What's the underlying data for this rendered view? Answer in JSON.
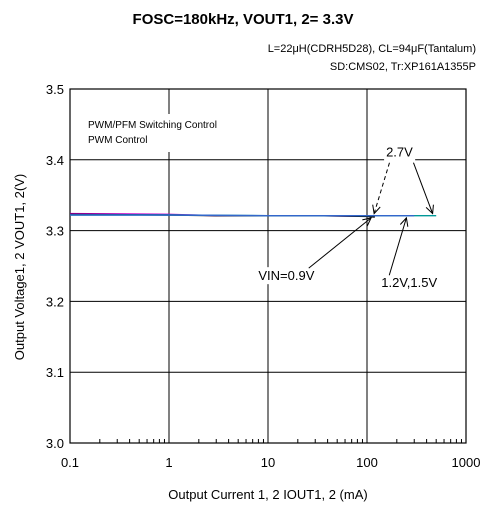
{
  "chart_data": {
    "type": "line",
    "title": "FOSC=180kHz, VOUT1, 2= 3.3V",
    "subtitle_line1": "L=22μH(CDRH5D28), CL=94μF(Tantalum)",
    "subtitle_line2": "SD:CMS02, Tr:XP161A1355P",
    "xlabel": "Output Current 1, 2 IOUT1, 2 (mA)",
    "ylabel": "Output Voltage1, 2 VOUT1, 2(V)",
    "x_scale": "log",
    "xlim": [
      0.1,
      1000
    ],
    "ylim": [
      3.0,
      3.5
    ],
    "x_ticks": [
      0.1,
      1,
      10,
      100,
      1000
    ],
    "x_tick_labels": [
      "0.1",
      "1",
      "10",
      "100",
      "1000"
    ],
    "y_ticks": [
      3.0,
      3.1,
      3.2,
      3.3,
      3.4,
      3.5
    ],
    "y_tick_labels": [
      "3.0",
      "3.1",
      "3.2",
      "3.3",
      "3.4",
      "3.5"
    ],
    "grid": true,
    "legend_text": [
      "PWM/PFM Switching Control",
      "PWM  Control"
    ],
    "legend_placement": "top-left",
    "series": [
      {
        "color": "#cc00cc",
        "x": [
          0.1,
          1,
          3,
          10,
          30,
          120
        ],
        "y": [
          3.324,
          3.323,
          3.321,
          3.321,
          3.321,
          3.32
        ]
      },
      {
        "color": "#000000",
        "x": [
          0.1,
          1,
          3,
          10,
          30,
          100,
          120
        ],
        "y": [
          3.323,
          3.322,
          3.321,
          3.321,
          3.321,
          3.32,
          3.319
        ]
      },
      {
        "color": "#009999",
        "x": [
          0.1,
          1,
          10,
          100,
          250,
          500
        ],
        "y": [
          3.322,
          3.322,
          3.321,
          3.321,
          3.321,
          3.321
        ]
      },
      {
        "color": "#3366cc",
        "x": [
          0.1,
          1,
          10,
          100,
          300
        ],
        "y": [
          3.322,
          3.322,
          3.321,
          3.321,
          3.321
        ]
      }
    ],
    "annotations": [
      {
        "text": "2.7V",
        "point_x": 10,
        "point_y": 3.41
      },
      {
        "text": "VIN=0.9V",
        "point_x": 10,
        "point_y": 3.23
      },
      {
        "text": "1.2V,1.5V",
        "point_x": 160,
        "point_y": 3.23
      }
    ]
  }
}
